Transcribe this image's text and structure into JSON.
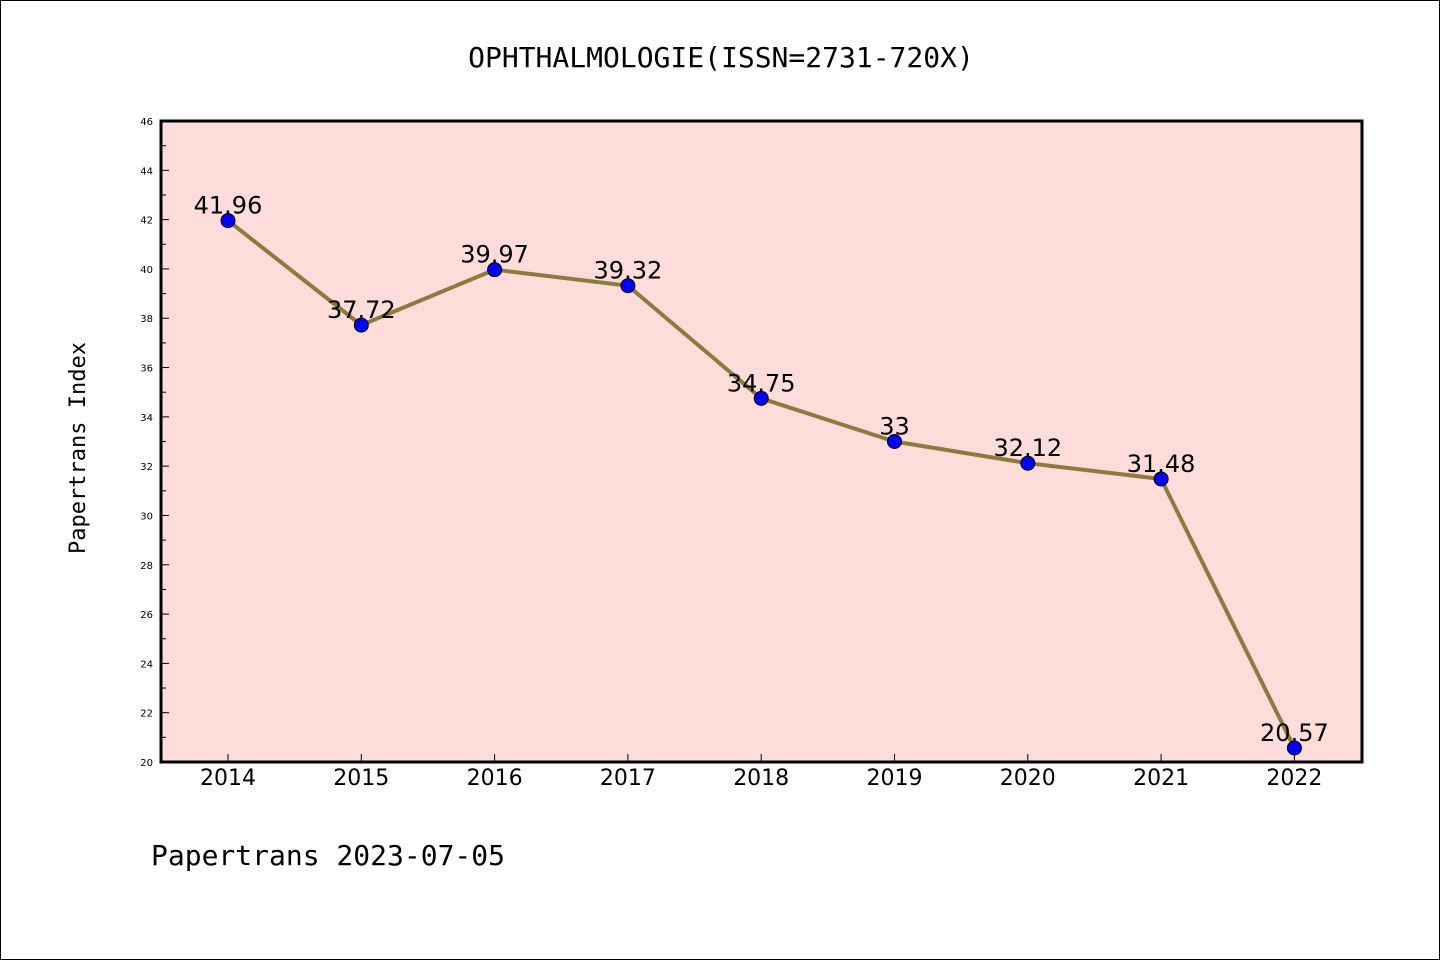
{
  "chart_data": {
    "type": "line",
    "title": "OPHTHALMOLOGIE(ISSN=2731-720X)",
    "ylabel": "Papertrans Index",
    "xlabel": "",
    "footer": "Papertrans 2023-07-05",
    "categories": [
      "2014",
      "2015",
      "2016",
      "2017",
      "2018",
      "2019",
      "2020",
      "2021",
      "2022"
    ],
    "values": [
      41.96,
      37.72,
      39.97,
      39.32,
      34.75,
      33,
      32.12,
      31.48,
      20.57
    ],
    "data_labels": [
      "41.96",
      "37.72",
      "39.97",
      "39.32",
      "34.75",
      "33",
      "32.12",
      "31.48",
      "20.57"
    ],
    "ylim": [
      20,
      46
    ],
    "yticks": [
      "20",
      "22",
      "24",
      "26",
      "28",
      "30",
      "32",
      "34",
      "36",
      "38",
      "40",
      "42",
      "44",
      "46"
    ],
    "grid": false,
    "colors": {
      "plot_background": "#fddcd9",
      "line": "#8c7b3a",
      "marker": "#0000ff"
    }
  }
}
